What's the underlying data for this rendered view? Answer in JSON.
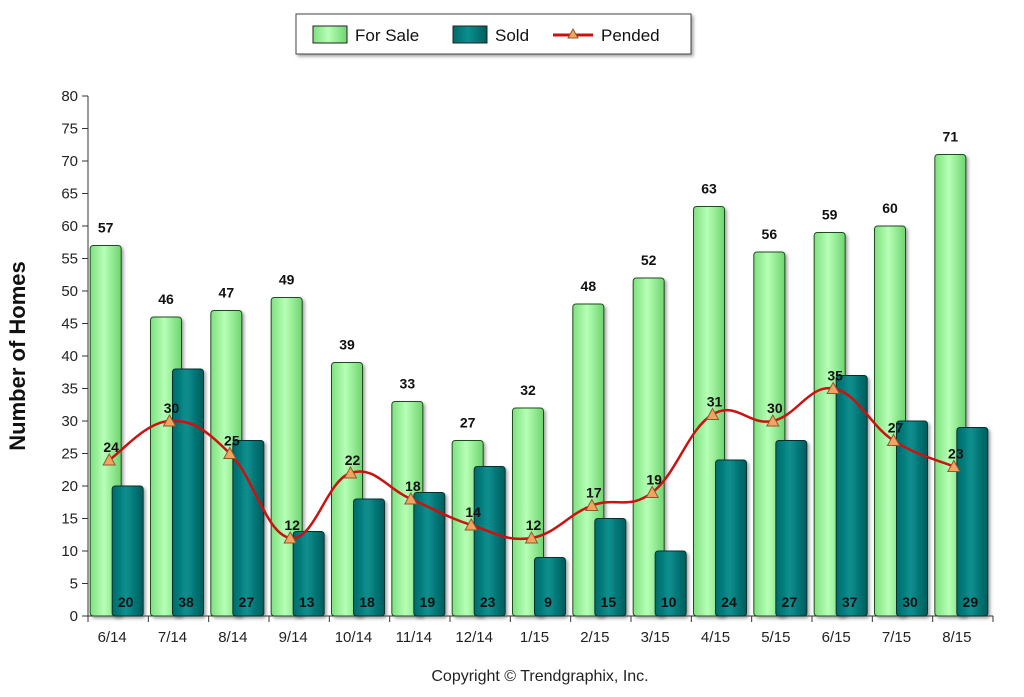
{
  "chart_data": {
    "type": "bar",
    "categories": [
      "6/14",
      "7/14",
      "8/14",
      "9/14",
      "10/14",
      "11/14",
      "12/14",
      "1/15",
      "2/15",
      "3/15",
      "4/15",
      "5/15",
      "6/15",
      "7/15",
      "8/15"
    ],
    "series": [
      {
        "name": "For Sale",
        "type": "bar",
        "color": "#99ff99",
        "values": [
          57,
          46,
          47,
          49,
          39,
          33,
          27,
          32,
          48,
          52,
          63,
          56,
          59,
          60,
          71
        ]
      },
      {
        "name": "Sold",
        "type": "bar",
        "color": "#008080",
        "values": [
          20,
          38,
          27,
          13,
          18,
          19,
          23,
          9,
          15,
          10,
          24,
          27,
          37,
          30,
          29
        ]
      },
      {
        "name": "Pended",
        "type": "line",
        "color": "#cc1111",
        "marker_color": "#f4a460",
        "values": [
          24,
          30,
          25,
          12,
          22,
          18,
          14,
          12,
          17,
          19,
          31,
          30,
          35,
          27,
          23
        ]
      }
    ],
    "title": "",
    "xlabel": "",
    "ylabel": "Number of Homes",
    "ylim": [
      0,
      80
    ],
    "yticks": [
      0,
      5,
      10,
      15,
      20,
      25,
      30,
      35,
      40,
      45,
      50,
      55,
      60,
      65,
      70,
      75,
      80
    ],
    "grid": false,
    "legend": "top-center"
  },
  "footer": {
    "copyright": "Copyright © Trendgraphix, Inc."
  }
}
